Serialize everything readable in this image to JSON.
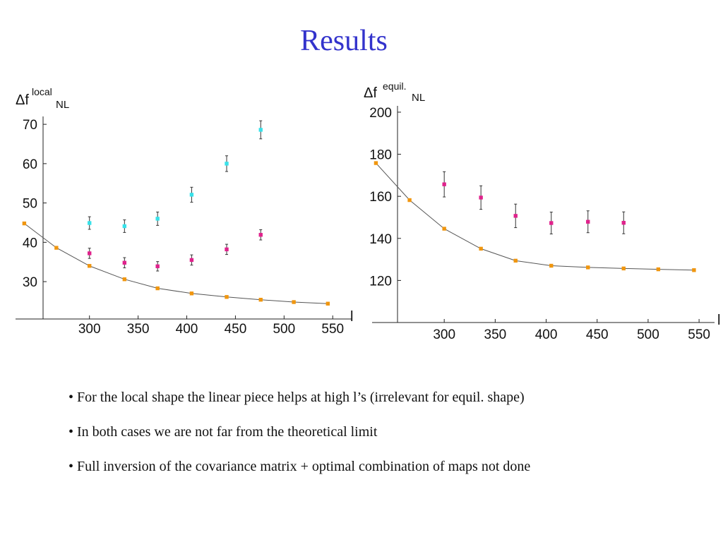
{
  "title": "Results",
  "bullets": [
    "For the local shape the linear piece helps at high l’s (irrelevant for equil. shape)",
    "In both cases we are not far from the theoretical limit",
    "Full inversion of the covariance matrix + optimal combination of maps not done"
  ],
  "chart_data": [
    {
      "type": "scatter",
      "ylabel": {
        "main": "Δf",
        "sup": "local",
        "sub": "NL"
      },
      "xlabel": "l",
      "xlim": [
        232,
        552
      ],
      "ylim": [
        20.5,
        72
      ],
      "xticks": [
        300,
        350,
        400,
        450,
        500,
        550
      ],
      "yticks": [
        30,
        40,
        50,
        60,
        70
      ],
      "grid": false,
      "series": [
        {
          "color": "#f0960f",
          "marker": "square",
          "line": true,
          "points": [
            [
              233,
              44.8
            ],
            [
              266,
              38.6
            ],
            [
              300,
              34.0
            ],
            [
              336,
              30.6
            ],
            [
              370,
              28.3
            ],
            [
              405,
              27.0
            ],
            [
              441,
              26.1
            ],
            [
              476,
              25.4
            ],
            [
              510,
              24.8
            ],
            [
              545,
              24.4
            ]
          ]
        },
        {
          "color": "#e0228c",
          "marker": "square",
          "line": false,
          "points": [
            [
              300,
              37.2,
              1.3
            ],
            [
              336,
              34.8,
              1.3
            ],
            [
              370,
              33.9,
              1.2
            ],
            [
              405,
              35.5,
              1.3
            ],
            [
              441,
              38.2,
              1.3
            ],
            [
              476,
              41.9,
              1.3
            ]
          ]
        },
        {
          "color": "#38e2ea",
          "marker": "square",
          "line": false,
          "points": [
            [
              300,
              44.9,
              1.6
            ],
            [
              336,
              44.1,
              1.6
            ],
            [
              370,
              46.0,
              1.7
            ],
            [
              405,
              52.1,
              1.9
            ],
            [
              441,
              60.0,
              2.0
            ],
            [
              476,
              68.6,
              2.3
            ]
          ]
        }
      ]
    },
    {
      "type": "scatter",
      "ylabel": {
        "main": "Δf",
        "sup": "equil.",
        "sub": "NL"
      },
      "xlabel": "l",
      "xlim": [
        232,
        552
      ],
      "ylim": [
        100,
        203
      ],
      "xticks": [
        300,
        350,
        400,
        450,
        500,
        550
      ],
      "yticks": [
        120,
        140,
        160,
        180,
        200
      ],
      "grid": false,
      "series": [
        {
          "color": "#f0960f",
          "marker": "square",
          "line": true,
          "points": [
            [
              233,
              175.8
            ],
            [
              266,
              158.2
            ],
            [
              300,
              144.6
            ],
            [
              336,
              135.1
            ],
            [
              370,
              129.4
            ],
            [
              405,
              127.0
            ],
            [
              441,
              126.2
            ],
            [
              476,
              125.7
            ],
            [
              510,
              125.3
            ],
            [
              545,
              124.9
            ]
          ]
        },
        {
          "color": "#e0228c",
          "marker": "square",
          "line": false,
          "points": [
            [
              300,
              165.7,
              6.0
            ],
            [
              336,
              159.4,
              5.6
            ],
            [
              370,
              150.7,
              5.6
            ],
            [
              405,
              147.3,
              5.2
            ],
            [
              441,
              147.9,
              5.2
            ],
            [
              476,
              147.4,
              5.2
            ]
          ]
        }
      ]
    }
  ]
}
